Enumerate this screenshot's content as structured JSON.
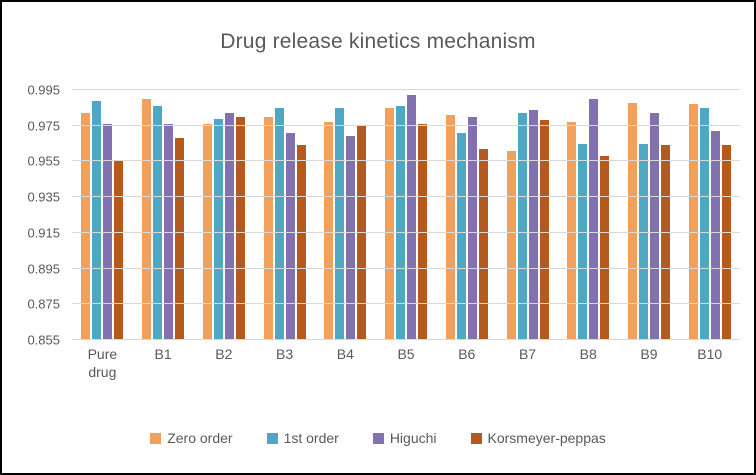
{
  "title": "Drug release kinetics mechanism",
  "chart_data": {
    "type": "bar",
    "title": "Drug release kinetics mechanism",
    "xlabel": "",
    "ylabel": "",
    "ylim": [
      0.855,
      0.995
    ],
    "yticks": [
      0.855,
      0.875,
      0.895,
      0.915,
      0.935,
      0.955,
      0.975,
      0.995
    ],
    "grid": true,
    "legend_position": "bottom",
    "categories": [
      "Pure drug",
      "B1",
      "B2",
      "B3",
      "B4",
      "B5",
      "B6",
      "B7",
      "B8",
      "B9",
      "B10"
    ],
    "series": [
      {
        "name": "Zero order",
        "color": "#F2A15C",
        "values": [
          0.982,
          0.99,
          0.976,
          0.98,
          0.977,
          0.985,
          0.981,
          0.961,
          0.977,
          0.988,
          0.987
        ]
      },
      {
        "name": "1st order",
        "color": "#4FA7C3",
        "values": [
          0.989,
          0.986,
          0.979,
          0.985,
          0.985,
          0.986,
          0.971,
          0.982,
          0.965,
          0.965,
          0.985
        ]
      },
      {
        "name": "Higuchi",
        "color": "#8171AF",
        "values": [
          0.976,
          0.976,
          0.982,
          0.971,
          0.969,
          0.992,
          0.98,
          0.984,
          0.99,
          0.982,
          0.972
        ]
      },
      {
        "name": "Korsmeyer-peppas",
        "color": "#B45A1F",
        "values": [
          0.955,
          0.968,
          0.98,
          0.964,
          0.975,
          0.976,
          0.962,
          0.978,
          0.958,
          0.964,
          0.964
        ]
      }
    ]
  }
}
